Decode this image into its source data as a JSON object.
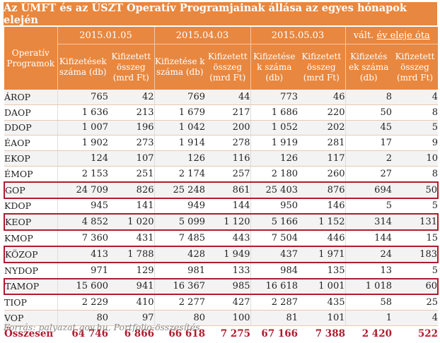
{
  "title": "Az ÚMFT és az ÚSZT Operatív Programjainak állása az egyes hónapok elején",
  "header": {
    "programs": "Operatív Programok",
    "groups": [
      "2015.01.05",
      "2015.04.03",
      "2015.05.03"
    ],
    "valt_prefix": "vált.",
    "valt_underlined": "év eleje óta",
    "sub": [
      "Kifizetések száma (db)",
      "Kifizetett összeg (mrd Ft)",
      "Kifizetése k száma (db)",
      "Kifizetett összeg (mrd Ft)",
      "Kifizetése k száma (db)",
      "Kifizetett összeg (mrd Ft)",
      "Kifizetés ek száma (db)",
      "Kifizetett összeg (mrd Ft)"
    ]
  },
  "rows": [
    {
      "name": "ÁROP",
      "v": [
        "765",
        "42",
        "769",
        "44",
        "773",
        "46",
        "8",
        "4"
      ]
    },
    {
      "name": "DAOP",
      "v": [
        "1 636",
        "213",
        "1 679",
        "217",
        "1 686",
        "220",
        "50",
        "8"
      ]
    },
    {
      "name": "DDOP",
      "v": [
        "1 007",
        "196",
        "1 042",
        "200",
        "1 052",
        "202",
        "45",
        "5"
      ]
    },
    {
      "name": "ÉAOP",
      "v": [
        "1 902",
        "273",
        "1 914",
        "278",
        "1 919",
        "281",
        "17",
        "9"
      ]
    },
    {
      "name": "EKOP",
      "v": [
        "124",
        "107",
        "126",
        "116",
        "126",
        "117",
        "2",
        "10"
      ]
    },
    {
      "name": "ÉMOP",
      "v": [
        "2 153",
        "251",
        "2 174",
        "257",
        "2 180",
        "260",
        "27",
        "8"
      ]
    },
    {
      "name": "GOP",
      "v": [
        "24 709",
        "826",
        "25 248",
        "861",
        "25 403",
        "876",
        "694",
        "50"
      ]
    },
    {
      "name": "KDOP",
      "v": [
        "945",
        "141",
        "949",
        "144",
        "950",
        "146",
        "5",
        "5"
      ]
    },
    {
      "name": "KEOP",
      "v": [
        "4 852",
        "1 020",
        "5 099",
        "1 120",
        "5 166",
        "1 152",
        "314",
        "131"
      ]
    },
    {
      "name": "KMOP",
      "v": [
        "7 360",
        "431",
        "7 485",
        "443",
        "7 504",
        "446",
        "144",
        "15"
      ]
    },
    {
      "name": "KÖZOP",
      "v": [
        "413",
        "1 788",
        "428",
        "1 949",
        "437",
        "1 971",
        "24",
        "183"
      ]
    },
    {
      "name": "NYDOP",
      "v": [
        "971",
        "129",
        "981",
        "133",
        "984",
        "135",
        "13",
        "5"
      ]
    },
    {
      "name": "TAMOP",
      "v": [
        "15 600",
        "941",
        "16 367",
        "985",
        "16 618",
        "1 001",
        "1 018",
        "60"
      ]
    },
    {
      "name": "TIOP",
      "v": [
        "2 229",
        "410",
        "2 277",
        "427",
        "2 287",
        "435",
        "58",
        "25"
      ]
    },
    {
      "name": "VOP",
      "v": [
        "80",
        "97",
        "80",
        "100",
        "81",
        "101",
        "1",
        "4"
      ]
    }
  ],
  "total": {
    "name": "Összesen",
    "v": [
      "64 746",
      "6 866",
      "66 618",
      "7 275",
      "67 166",
      "7 388",
      "2 420",
      "522"
    ]
  },
  "highlighted": [
    "GOP",
    "KEOP",
    "KÖZOP",
    "TAMOP"
  ],
  "source": "Forrás: palyazat.gov.hu, Portfolio-összesítés",
  "colors": {
    "header_bg": "#e8873f",
    "highlight": "#b01c2e",
    "total_text": "#b01c2e"
  }
}
